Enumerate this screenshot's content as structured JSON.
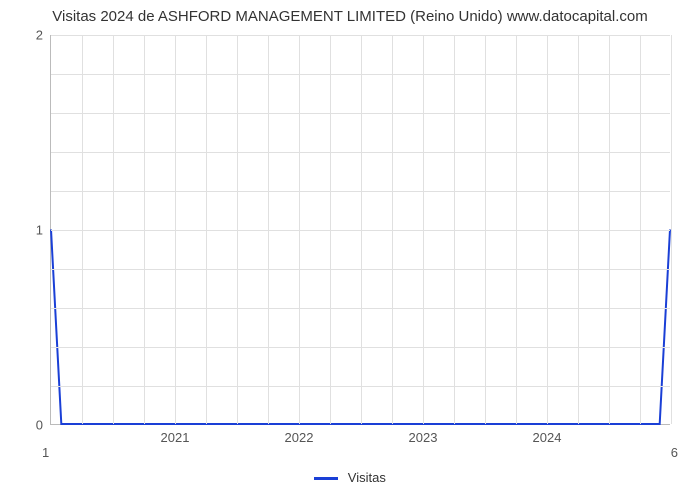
{
  "chart": {
    "type": "line",
    "title": "Visitas 2024 de ASHFORD MANAGEMENT LIMITED (Reino Unido) www.datocapital.com",
    "title_fontsize": 15,
    "title_color": "#333333",
    "background_color": "#ffffff",
    "grid_color": "#e0e0e0",
    "axis_color": "#bbbbbb",
    "line_color": "#1a3fd6",
    "line_width": 2,
    "xlim": [
      0,
      60
    ],
    "ylim": [
      0,
      2
    ],
    "y_ticks": [
      0,
      1,
      2
    ],
    "y_minor_count": 5,
    "x_major_ticks": [
      {
        "pos": 12,
        "label": "2021"
      },
      {
        "pos": 24,
        "label": "2022"
      },
      {
        "pos": 36,
        "label": "2023"
      },
      {
        "pos": 48,
        "label": "2024"
      }
    ],
    "x_grid_positions": [
      0,
      3,
      6,
      9,
      12,
      15,
      18,
      21,
      24,
      27,
      30,
      33,
      36,
      39,
      42,
      45,
      48,
      51,
      54,
      57,
      60
    ],
    "bottom_left_label": "1",
    "bottom_right_label": "6",
    "series": {
      "name": "Visitas",
      "x": [
        0,
        1,
        59,
        60
      ],
      "y": [
        1,
        0,
        0,
        1
      ]
    },
    "legend": {
      "label": "Visitas",
      "swatch_color": "#1a3fd6"
    }
  }
}
